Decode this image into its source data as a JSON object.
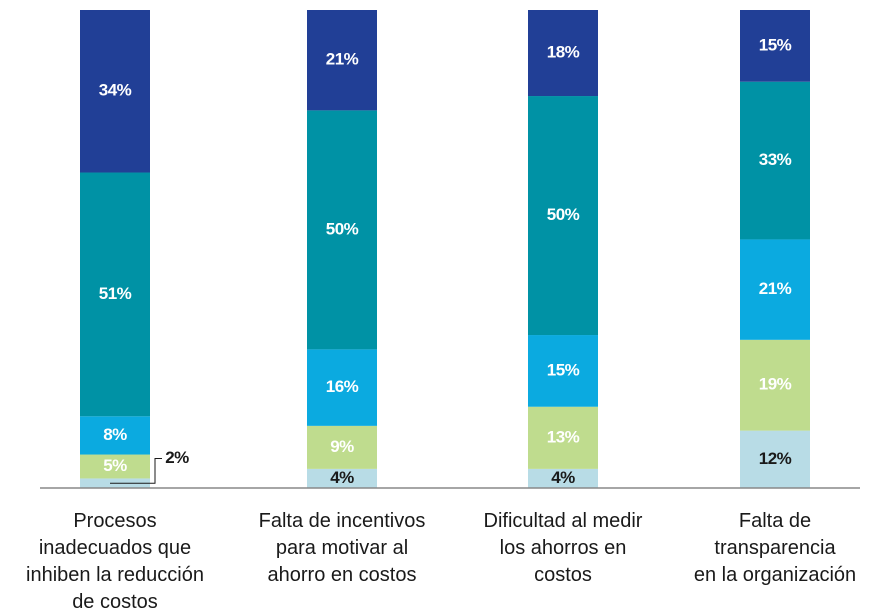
{
  "chart_data": {
    "type": "stacked_bar",
    "categories": [
      "Procesos\ninadecuados que\ninhiben la reducción\nde costos",
      "Falta de incentivos\npara motivar al\nahorro en costos",
      "Dificultad al medir\nlos ahorros en\ncostos",
      "Falta de\ntransparencia\nen la organización"
    ],
    "series": [
      {
        "color": "#b8dce6",
        "label_color": "#1a1a1a",
        "values": [
          2,
          4,
          4,
          12
        ],
        "value_labels": [
          "2%",
          "4%",
          "4%",
          "12%"
        ]
      },
      {
        "color": "#bfdc8e",
        "label_color": "#ffffff",
        "values": [
          5,
          9,
          13,
          19
        ],
        "value_labels": [
          "5%",
          "9%",
          "13%",
          "19%"
        ]
      },
      {
        "color": "#0baae0",
        "label_color": "#ffffff",
        "values": [
          8,
          16,
          15,
          21
        ],
        "value_labels": [
          "8%",
          "16%",
          "15%",
          "21%"
        ]
      },
      {
        "color": "#0092a5",
        "label_color": "#ffffff",
        "values": [
          51,
          50,
          50,
          33
        ],
        "value_labels": [
          "51%",
          "50%",
          "50%",
          "33%"
        ]
      },
      {
        "color": "#213f96",
        "label_color": "#ffffff",
        "values": [
          34,
          21,
          18,
          15
        ],
        "value_labels": [
          "34%",
          "21%",
          "18%",
          "15%"
        ]
      }
    ],
    "ylim": [
      0,
      100
    ]
  }
}
